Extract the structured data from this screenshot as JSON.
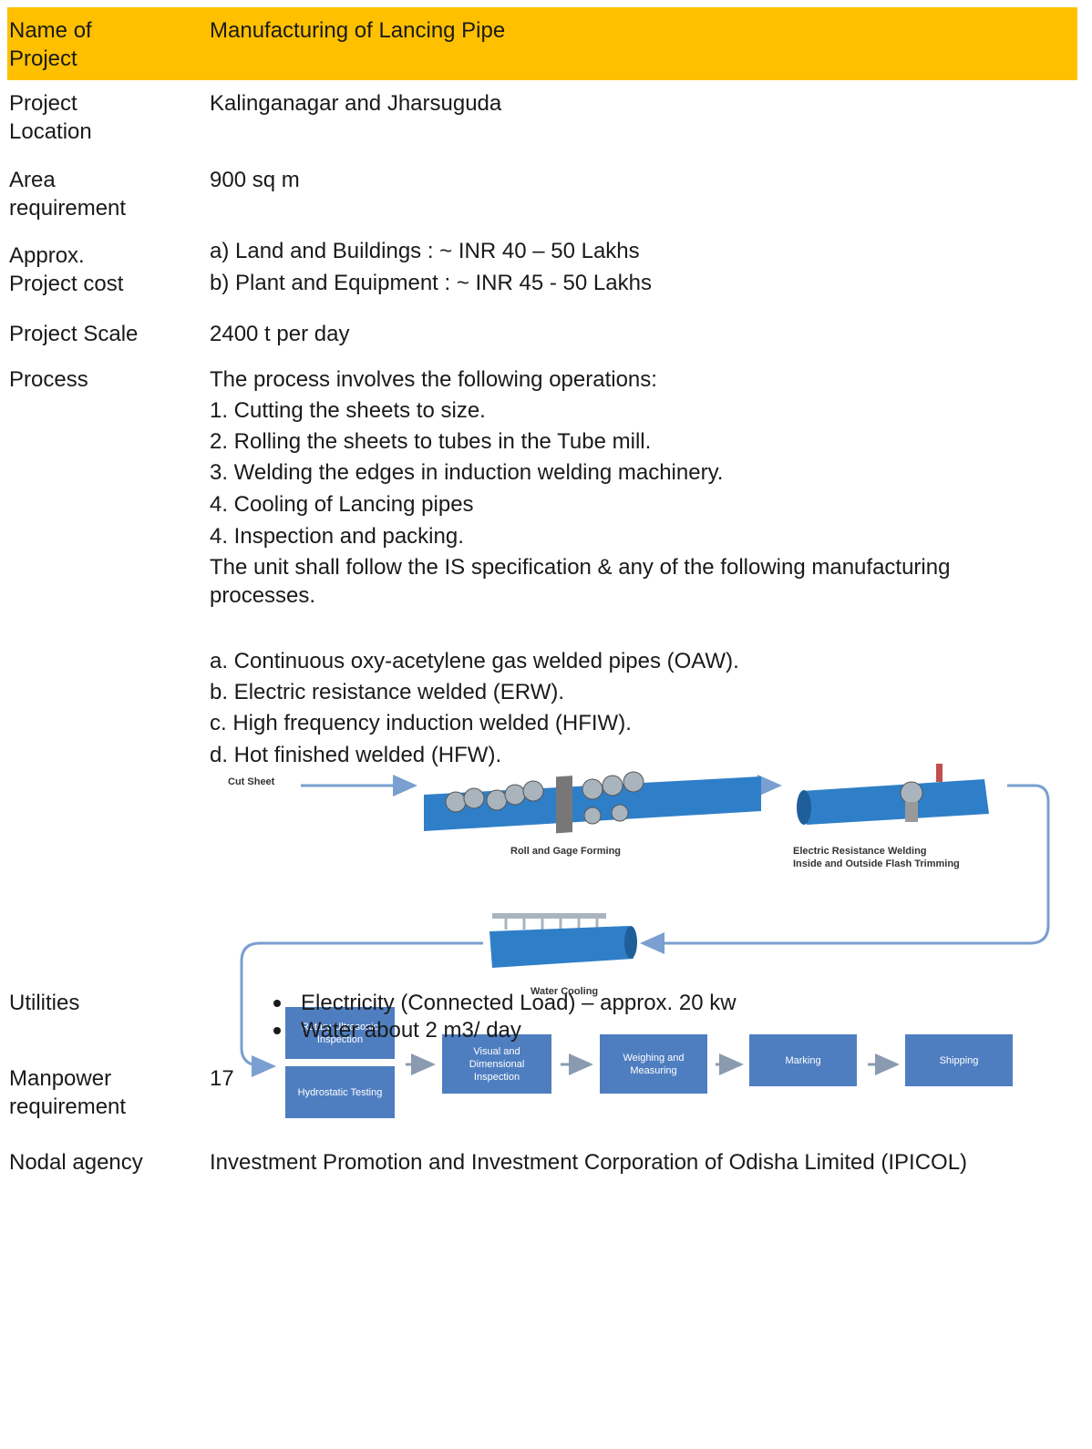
{
  "table": {
    "header": {
      "label": "Name of Project",
      "value": "Manufacturing of Lancing Pipe"
    },
    "rows": [
      {
        "label": "Project Location",
        "lines": [
          "Kalinganagar and Jharsuguda"
        ]
      },
      {
        "label": "Area requirement",
        "lines": [
          "900 sq m"
        ]
      },
      {
        "label": "Approx. Project cost",
        "lines": [
          "a) Land and Buildings : ~ INR 40 – 50 Lakhs",
          "b) Plant and Equipment : ~ INR 45 - 50 Lakhs"
        ]
      },
      {
        "label": "Project Scale",
        "lines": [
          "2400 t per day"
        ]
      },
      {
        "label": "Process",
        "lines": [
          "The process involves the following operations:",
          "1. Cutting the sheets to size.",
          "2. Rolling the sheets to tubes in the Tube mill.",
          "3. Welding the edges in induction welding machinery.",
          "4. Cooling of Lancing pipes",
          "4. Inspection and packing.",
          "The unit shall follow the IS specification & any of the following manufacturing processes.",
          "a. Continuous oxy-acetylene gas welded pipes (OAW).",
          "b. Electric resistance welded (ERW).",
          "c. High frequency induction welded (HFIW).",
          "d. Hot finished welded (HFW)."
        ]
      },
      {
        "label": "Utilities",
        "lines": [
          "Electricity (Connected Load) – approx. 20 kw",
          "Water about 2 m3/ day"
        ]
      },
      {
        "label": "Manpower requirement",
        "lines": [
          "17"
        ]
      },
      {
        "label": "Nodal agency",
        "lines": [
          "Investment Promotion and Investment Corporation of Odisha Limited (IPICOL)"
        ]
      }
    ]
  },
  "diagram": {
    "input": "Cut Sheet",
    "forming": "Roll and Gage Forming",
    "welding": [
      "Electric Resistance Welding",
      "Inside and Outside Flash Trimming"
    ],
    "cooling": "Water Cooling",
    "boxes": [
      "Rotary Ultrasonic Inspection",
      "Hydrostatic Testing",
      "Visual and Dimensional Inspection",
      "Weighing and Measuring",
      "Marking",
      "Shipping"
    ]
  }
}
